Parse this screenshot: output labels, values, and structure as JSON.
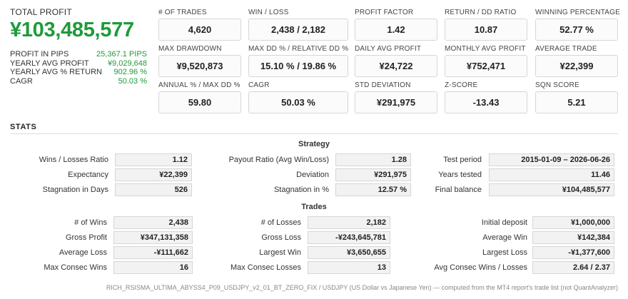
{
  "summary": {
    "total_label": "TOTAL PROFIT",
    "total_value": "¥103,485,577",
    "rows": [
      {
        "label": "PROFIT IN PIPS",
        "value": "25,367.1 PIPS"
      },
      {
        "label": "YEARLY AVG PROFIT",
        "value": "¥9,029,648"
      },
      {
        "label": "YEARLY AVG % RETURN",
        "value": "902.96 %"
      },
      {
        "label": "CAGR",
        "value": "50.03 %"
      }
    ]
  },
  "metrics": [
    {
      "label": "# OF TRADES",
      "value": "4,620"
    },
    {
      "label": "WIN / LOSS",
      "value": "2,438 / 2,182"
    },
    {
      "label": "PROFIT FACTOR",
      "value": "1.42"
    },
    {
      "label": "RETURN / DD RATIO",
      "value": "10.87"
    },
    {
      "label": "WINNING PERCENTAGE",
      "value": "52.77 %"
    },
    {
      "label": "MAX DRAWDOWN",
      "value": "¥9,520,873"
    },
    {
      "label": "MAX DD % / RELATIVE DD %",
      "value": "15.10 % / 19.86 %"
    },
    {
      "label": "DAILY AVG PROFIT",
      "value": "¥24,722"
    },
    {
      "label": "MONTHLY AVG PROFIT",
      "value": "¥752,471"
    },
    {
      "label": "AVERAGE TRADE",
      "value": "¥22,399"
    },
    {
      "label": "ANNUAL % / MAX DD %",
      "value": "59.80"
    },
    {
      "label": "CAGR",
      "value": "50.03 %"
    },
    {
      "label": "STD DEVIATION",
      "value": "¥291,975"
    },
    {
      "label": "Z-SCORE",
      "value": "-13.43"
    },
    {
      "label": "SQN SCORE",
      "value": "5.21"
    }
  ],
  "stats": {
    "title": "STATS",
    "strategy": {
      "title": "Strategy",
      "rows": [
        [
          {
            "label": "Wins / Losses Ratio",
            "value": "1.12"
          },
          {
            "label": "Payout Ratio (Avg Win/Loss)",
            "value": "1.28"
          },
          {
            "label": "Test period",
            "value": "2015-01-09 – 2026-06-26"
          }
        ],
        [
          {
            "label": "Expectancy",
            "value": "¥22,399"
          },
          {
            "label": "Deviation",
            "value": "¥291,975"
          },
          {
            "label": "Years tested",
            "value": "11.46"
          }
        ],
        [
          {
            "label": "Stagnation in Days",
            "value": "526"
          },
          {
            "label": "Stagnation in %",
            "value": "12.57 %"
          },
          {
            "label": "Final balance",
            "value": "¥104,485,577"
          }
        ]
      ]
    },
    "trades": {
      "title": "Trades",
      "rows": [
        [
          {
            "label": "# of Wins",
            "value": "2,438"
          },
          {
            "label": "# of Losses",
            "value": "2,182"
          },
          {
            "label": "Initial deposit",
            "value": "¥1,000,000"
          }
        ],
        [
          {
            "label": "Gross Profit",
            "value": "¥347,131,358"
          },
          {
            "label": "Gross Loss",
            "value": "-¥243,645,781"
          },
          {
            "label": "Average Win",
            "value": "¥142,384"
          }
        ],
        [
          {
            "label": "Average Loss",
            "value": "-¥111,662"
          },
          {
            "label": "Largest Win",
            "value": "¥3,650,655"
          },
          {
            "label": "Largest Loss",
            "value": "-¥1,377,600"
          }
        ],
        [
          {
            "label": "Max Consec Wins",
            "value": "16"
          },
          {
            "label": "Max Consec Losses",
            "value": "13"
          },
          {
            "label": "Avg Consec Wins / Losses",
            "value": "2.64 / 2.37"
          }
        ]
      ]
    }
  },
  "footer": "RICH_RSISMA_ULTIMA_ABYSS4_P09_USDJPY_v2_01_BT_ZERO_FIX / USDJPY (US Dollar vs Japanese Yen) — computed from the MT4 report's trade list (not QuantAnalyzer)",
  "colors": {
    "accent_green": "#1e9a3a",
    "box_border": "#d6d6d6",
    "cell_bg": "#f2f2f2"
  }
}
